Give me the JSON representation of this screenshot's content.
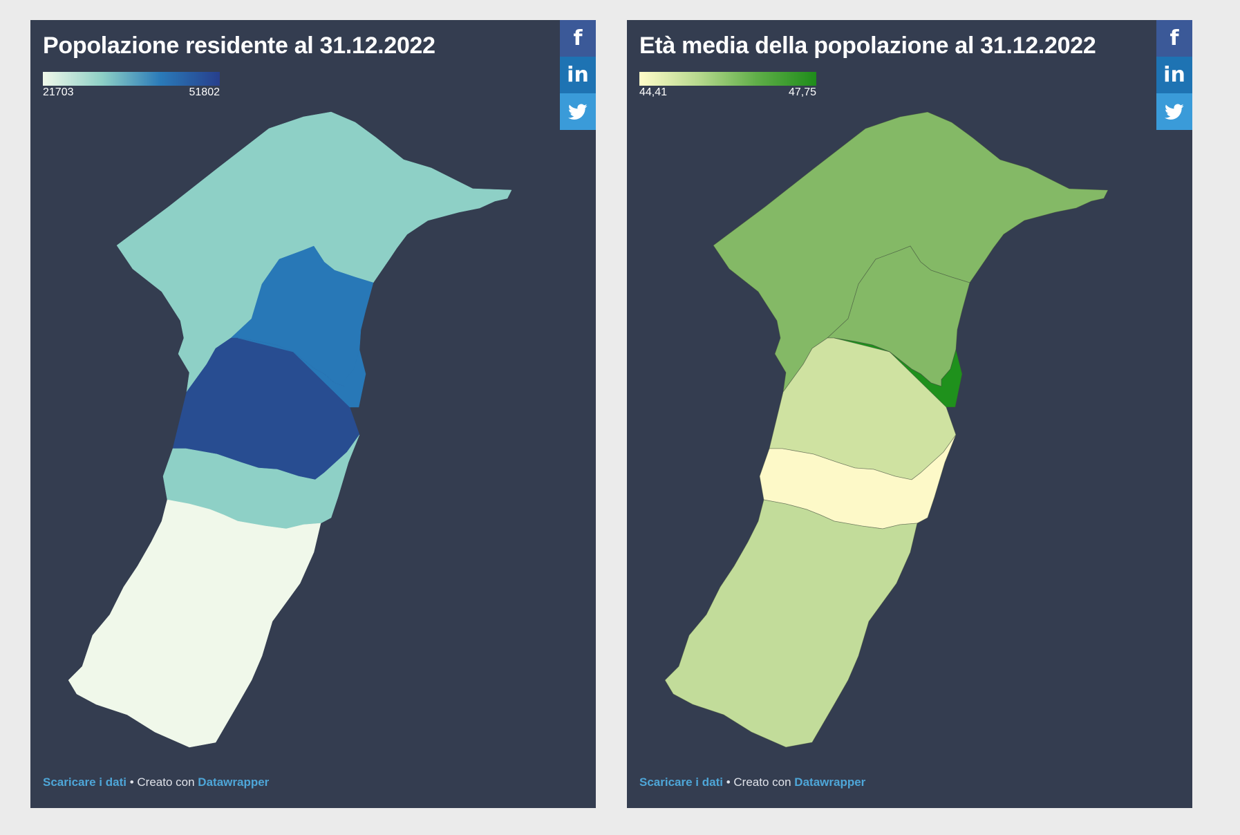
{
  "maps": [
    {
      "title": "Popolazione residente al 31.12.2022",
      "legend": {
        "min_label": "21703",
        "max_label": "51802",
        "colors": [
          "#f0f8ea",
          "#8ed0c6",
          "#2a7ab8",
          "#273f8c"
        ]
      },
      "region_colors": [
        "#8ed0c6",
        "#2878b7",
        "#284d91",
        "#2878b7",
        "#8ed0c6",
        "#f0f8ea"
      ],
      "show_borders": false
    },
    {
      "title": "Età media della popolazione al 31.12.2022",
      "legend": {
        "min_label": "44,41",
        "max_label": "47,75",
        "colors": [
          "#fffcc9",
          "#b7d98e",
          "#5fae48",
          "#1e8c1a"
        ]
      },
      "region_colors": [
        "#84b966",
        "#84b966",
        "#cfe2a1",
        "#1f911c",
        "#fdf9c8",
        "#c2dc9a"
      ],
      "show_borders": true
    }
  ],
  "share": {
    "facebook_icon": "f",
    "linkedin_icon": "in",
    "twitter_icon": "twitter-bird"
  },
  "footer": {
    "download_link": "Scaricare i dati",
    "separator": "•",
    "created_with": "Creato con",
    "tool_link": "Datawrapper"
  }
}
